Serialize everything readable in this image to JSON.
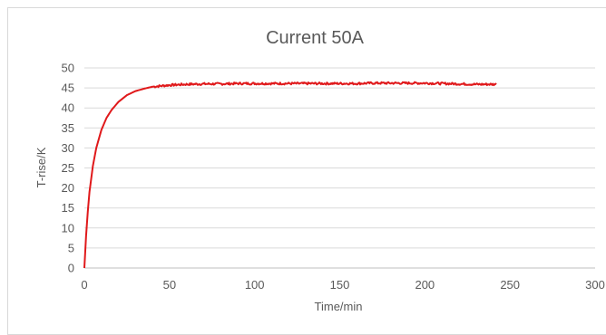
{
  "chart_data": {
    "type": "line",
    "title": "Current 50A",
    "xlabel": "Time/min",
    "ylabel": "T-rise/K",
    "xlim": [
      0,
      300
    ],
    "ylim": [
      0,
      50
    ],
    "xticks": [
      0,
      50,
      100,
      150,
      200,
      250,
      300
    ],
    "yticks": [
      0,
      5,
      10,
      15,
      20,
      25,
      30,
      35,
      40,
      45,
      50
    ],
    "grid": true,
    "legend": "none",
    "series": [
      {
        "color": "#e0191b",
        "x": [
          0,
          1,
          2,
          3,
          5,
          7,
          10,
          13,
          16,
          20,
          25,
          30,
          35,
          40,
          45,
          50,
          55,
          60,
          70,
          80,
          90,
          100,
          110,
          120,
          130,
          140,
          150,
          160,
          170,
          180,
          190,
          200,
          210,
          220,
          230,
          242
        ],
        "y": [
          0,
          8,
          14,
          19,
          25.5,
          30,
          34.5,
          37.5,
          39.5,
          41.5,
          43.2,
          44.2,
          44.8,
          45.3,
          45.5,
          45.7,
          45.8,
          45.9,
          46.0,
          46.0,
          46.1,
          46.1,
          46.1,
          46.1,
          46.1,
          46.1,
          46.1,
          46.1,
          46.2,
          46.2,
          46.2,
          46.2,
          46.1,
          46.0,
          45.9,
          45.9
        ]
      }
    ]
  }
}
